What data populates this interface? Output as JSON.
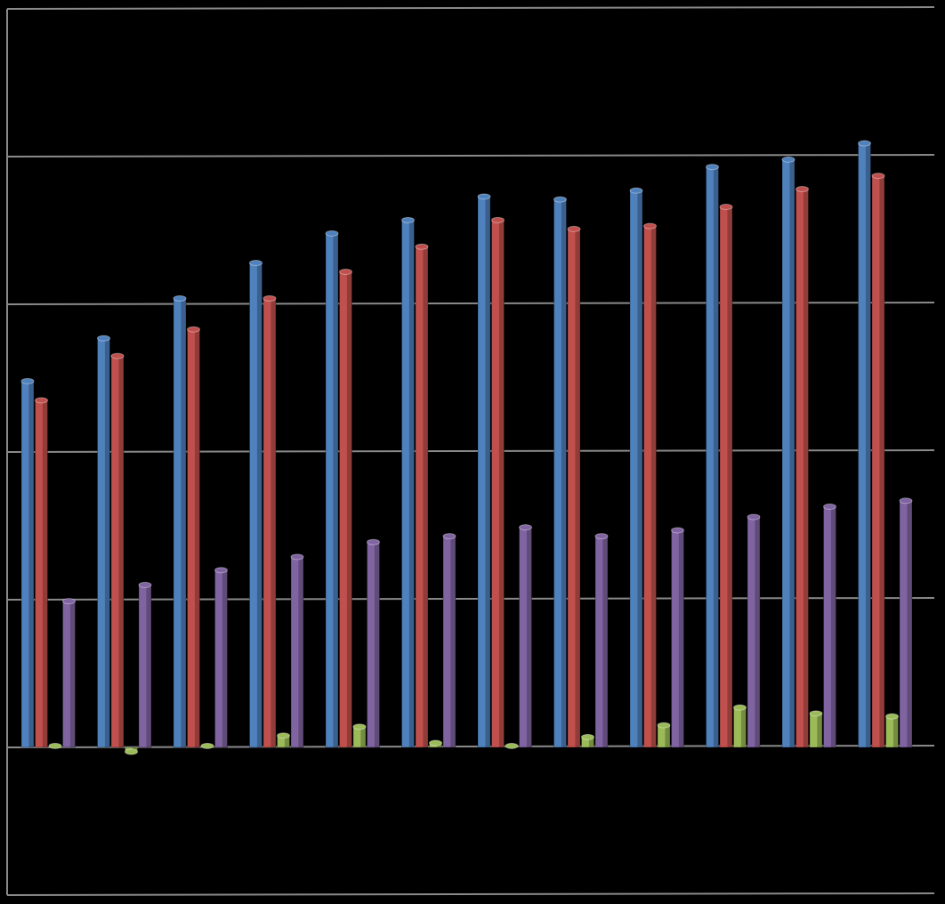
{
  "chart_data": {
    "type": "bar",
    "categories": [
      null,
      null,
      null,
      null,
      null,
      null,
      null,
      null,
      null,
      null,
      null,
      null
    ],
    "series": [
      {
        "color": "#4f81bd",
        "values": [
          2.48,
          2.77,
          3.04,
          3.28,
          3.48,
          3.57,
          3.73,
          3.71,
          3.77,
          3.93,
          3.98,
          4.09
        ]
      },
      {
        "color": "#c0504d",
        "values": [
          2.35,
          2.65,
          2.83,
          3.04,
          3.22,
          3.39,
          3.57,
          3.51,
          3.53,
          3.66,
          3.78,
          3.87
        ]
      },
      {
        "color": "#9bbb59",
        "values": [
          0.01,
          -0.03,
          0.01,
          0.08,
          0.14,
          0.03,
          0.01,
          0.07,
          0.15,
          0.27,
          0.23,
          0.21
        ]
      },
      {
        "color": "#8064a2",
        "values": [
          0.99,
          1.1,
          1.2,
          1.29,
          1.39,
          1.43,
          1.49,
          1.43,
          1.47,
          1.56,
          1.63,
          1.67
        ]
      }
    ],
    "ylim": [
      -1,
      5
    ],
    "yticks": [
      -1,
      0,
      1,
      2,
      3,
      4,
      5
    ],
    "grid": true
  }
}
